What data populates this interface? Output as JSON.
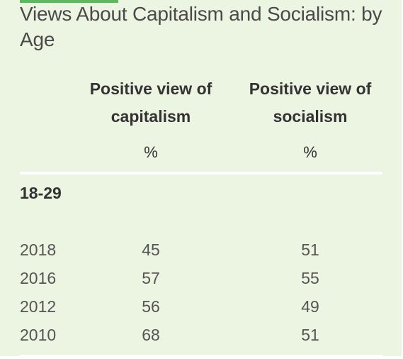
{
  "colors": {
    "background": "#ecf4e2",
    "accent": "#5cb85c",
    "text": "#333333"
  },
  "chart_data": {
    "type": "table",
    "title": "Views About Capitalism and Socialism: by Age",
    "columns": [
      "Positive view of capitalism",
      "Positive view of socialism"
    ],
    "unit": "%",
    "group": "18-29",
    "rows": [
      {
        "year": "2018",
        "values": [
          "45",
          "51"
        ]
      },
      {
        "year": "2016",
        "values": [
          "57",
          "55"
        ]
      },
      {
        "year": "2012",
        "values": [
          "56",
          "49"
        ]
      },
      {
        "year": "2010",
        "values": [
          "68",
          "51"
        ]
      }
    ]
  }
}
